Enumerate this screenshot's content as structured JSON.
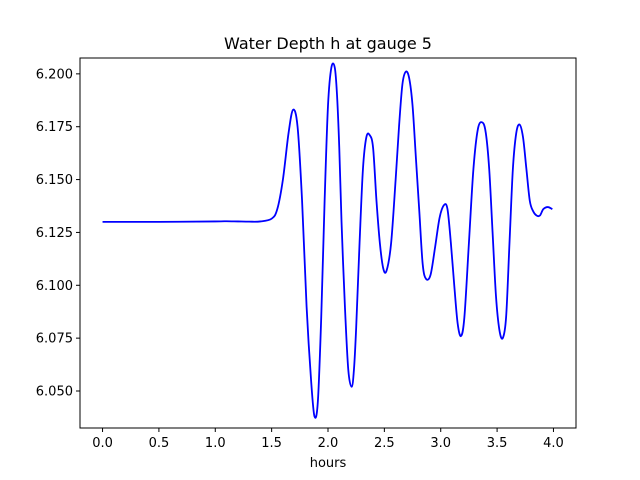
{
  "chart_data": {
    "type": "line",
    "title": "Water Depth h at gauge 5",
    "xlabel": "hours",
    "ylabel": "",
    "xlim": [
      -0.2,
      4.2
    ],
    "ylim": [
      6.0325,
      6.2075
    ],
    "xticks": [
      0.0,
      0.5,
      1.0,
      1.5,
      2.0,
      2.5,
      3.0,
      3.5,
      4.0
    ],
    "xtick_labels": [
      "0.0",
      "0.5",
      "1.0",
      "1.5",
      "2.0",
      "2.5",
      "3.0",
      "3.5",
      "4.0"
    ],
    "yticks": [
      6.05,
      6.075,
      6.1,
      6.125,
      6.15,
      6.175,
      6.2
    ],
    "ytick_labels": [
      "6.050",
      "6.075",
      "6.100",
      "6.125",
      "6.150",
      "6.175",
      "6.200"
    ],
    "grid": false,
    "series": [
      {
        "color": "#0000ff",
        "x": [
          0.0,
          0.5,
          1.0,
          1.1,
          1.2,
          1.3,
          1.4,
          1.5,
          1.55,
          1.6,
          1.65,
          1.69,
          1.73,
          1.77,
          1.81,
          1.85,
          1.88,
          1.91,
          1.94,
          1.97,
          2.0,
          2.03,
          2.06,
          2.08,
          2.1,
          2.12,
          2.15,
          2.18,
          2.21,
          2.23,
          2.25,
          2.28,
          2.31,
          2.34,
          2.37,
          2.4,
          2.43,
          2.46,
          2.49,
          2.52,
          2.56,
          2.6,
          2.63,
          2.66,
          2.69,
          2.72,
          2.75,
          2.78,
          2.81,
          2.84,
          2.87,
          2.91,
          2.95,
          2.99,
          3.03,
          3.06,
          3.09,
          3.12,
          3.15,
          3.18,
          3.21,
          3.25,
          3.29,
          3.33,
          3.37,
          3.4,
          3.43,
          3.46,
          3.49,
          3.52,
          3.55,
          3.58,
          3.61,
          3.64,
          3.67,
          3.7,
          3.73,
          3.76,
          3.79,
          3.82,
          3.85,
          3.88,
          3.91,
          3.95,
          3.99
        ],
        "y": [
          6.13,
          6.13,
          6.1302,
          6.1303,
          6.1302,
          6.1301,
          6.1302,
          6.1315,
          6.136,
          6.15,
          6.172,
          6.183,
          6.175,
          6.14,
          6.09,
          6.055,
          6.038,
          6.045,
          6.085,
          6.14,
          6.185,
          6.203,
          6.203,
          6.19,
          6.165,
          6.13,
          6.09,
          6.06,
          6.052,
          6.06,
          6.08,
          6.12,
          6.155,
          6.17,
          6.171,
          6.165,
          6.14,
          6.12,
          6.108,
          6.107,
          6.12,
          6.15,
          6.175,
          6.195,
          6.201,
          6.198,
          6.185,
          6.16,
          6.135,
          6.11,
          6.103,
          6.105,
          6.118,
          6.132,
          6.138,
          6.136,
          6.12,
          6.1,
          6.082,
          6.076,
          6.085,
          6.12,
          6.155,
          6.174,
          6.177,
          6.172,
          6.155,
          6.125,
          6.095,
          6.079,
          6.075,
          6.085,
          6.12,
          6.155,
          6.172,
          6.176,
          6.17,
          6.155,
          6.14,
          6.135,
          6.133,
          6.133,
          6.136,
          6.137,
          6.136
        ]
      }
    ]
  }
}
